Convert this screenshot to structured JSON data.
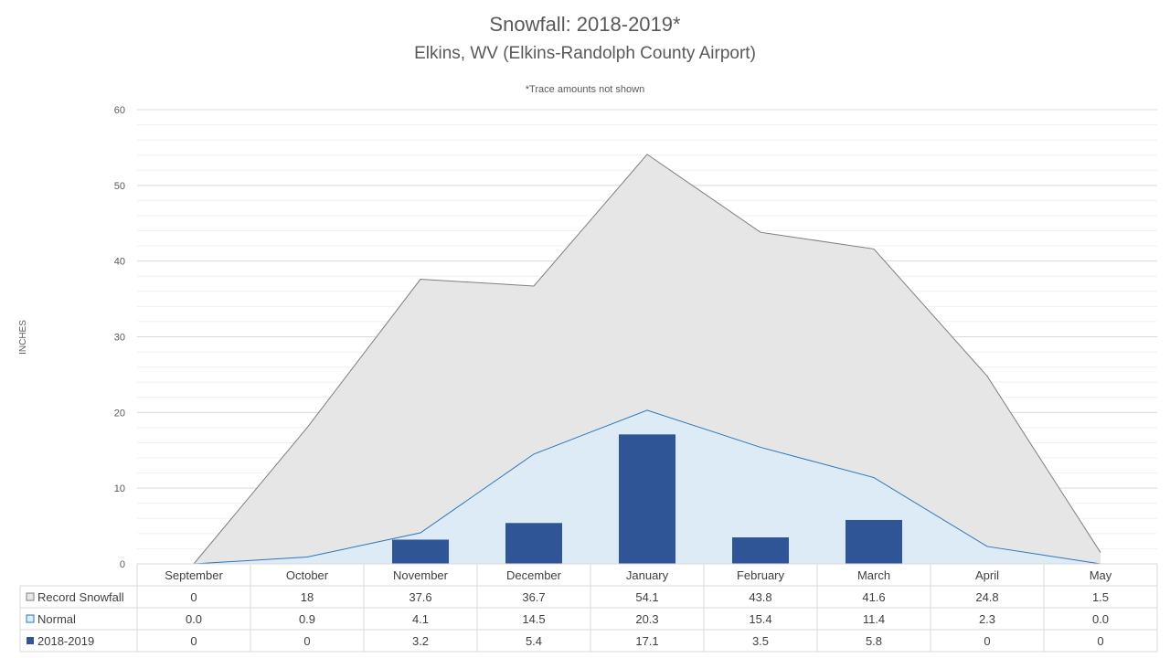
{
  "chart_data": {
    "type": "area",
    "title": "Snowfall: 2018-2019*",
    "subtitle": "Elkins, WV (Elkins-Randolph County Airport)",
    "note": "*Trace amounts not shown",
    "ylabel": "INCHES",
    "xlabel": "",
    "ylim": [
      0,
      60
    ],
    "yticks": [
      0,
      10,
      20,
      30,
      40,
      50,
      60
    ],
    "grid": true,
    "legend_placement": "data table (left)",
    "categories": [
      "September",
      "October",
      "November",
      "December",
      "January",
      "February",
      "March",
      "April",
      "May"
    ],
    "series": [
      {
        "name": "Record Snowfall",
        "type": "area",
        "color": "#e7e6e6",
        "line_color": "#7f7f7f",
        "values": [
          0,
          18,
          37.6,
          36.7,
          54.1,
          43.8,
          41.6,
          24.8,
          1.5
        ],
        "labels": [
          "0",
          "18",
          "37.6",
          "36.7",
          "54.1",
          "43.8",
          "41.6",
          "24.8",
          "1.5"
        ]
      },
      {
        "name": "Normal",
        "type": "area",
        "color": "#ddebf7",
        "line_color": "#2e75b6",
        "values": [
          0.0,
          0.9,
          4.1,
          14.5,
          20.3,
          15.4,
          11.4,
          2.3,
          0.0
        ],
        "labels": [
          "0.0",
          "0.9",
          "4.1",
          "14.5",
          "20.3",
          "15.4",
          "11.4",
          "2.3",
          "0.0"
        ]
      },
      {
        "name": "2018-2019",
        "type": "bar",
        "color": "#2f5597",
        "values": [
          0,
          0,
          3.2,
          5.4,
          17.1,
          3.5,
          5.8,
          0,
          0
        ],
        "labels": [
          "0",
          "0",
          "3.2",
          "5.4",
          "17.1",
          "3.5",
          "5.8",
          "0",
          "0"
        ]
      }
    ]
  }
}
